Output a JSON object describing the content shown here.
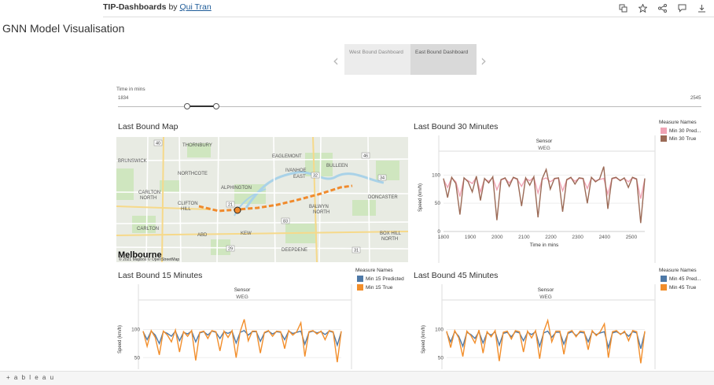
{
  "header": {
    "dashboard_title": "TIP-Dashboards",
    "by_label": "by",
    "author": "Qui Tran",
    "icons": [
      "copy-icon",
      "star-icon",
      "share-icon",
      "comment-icon",
      "download-icon"
    ]
  },
  "page_title": "GNN Model Visualisation",
  "story": {
    "points": [
      "West Bound Dashboard",
      "East Bound Dashboard"
    ],
    "selected_index": 1
  },
  "time_filter": {
    "label": "Time in mins",
    "min_label": "1834",
    "max_label": "2545"
  },
  "map": {
    "title": "Last Bound Map",
    "attribution": "© 2021 Mapbox © OpenStreetMap",
    "city_label": "Melbourne",
    "place_labels": [
      "THORNBURY",
      "BRUNSWICK",
      "NORTHCOTE",
      "EAGLEMONT",
      "IVANHOE EAST",
      "BULLEEN",
      "ALPHINGTON",
      "CARLTON NORTH",
      "CLIFTON HILL",
      "BALWYN NORTH",
      "DONCASTER",
      "CARLTON",
      "KEW",
      "BOX HILL NORTH",
      "DEEPDENE",
      "ABD"
    ],
    "road_labels": [
      "21",
      "40",
      "32",
      "46",
      "34",
      "56",
      "38",
      "50",
      "53",
      "39",
      "34",
      "83",
      "29",
      "31"
    ]
  },
  "colors": {
    "map_route": "#f08a2c",
    "pred_30": "#f0a3b4",
    "true_30": "#9b6a56",
    "pred": "#4e79a7",
    "true": "#f28e2b"
  },
  "charts": [
    {
      "id": "chart-30",
      "title": "Last Bound 30 Minutes",
      "sensor_label": "Sensor",
      "sensor_value": "WEG",
      "ylabel": "Speed (km/h)",
      "xlabel": "Time in mins",
      "legend_title": "Measure Names",
      "legend": [
        {
          "name": "Min 30 Pred...",
          "color": "#f0a3b4"
        },
        {
          "name": "Min 30 True",
          "color": "#9b6a56"
        }
      ],
      "yticks": [
        "100",
        "50",
        "0"
      ],
      "xticks": [
        "1800",
        "1900",
        "2000",
        "2100",
        "2200",
        "2300",
        "2400",
        "2500"
      ]
    },
    {
      "id": "chart-15",
      "title": "Last Bound 15 Minutes",
      "sensor_label": "Sensor",
      "sensor_value": "WEG",
      "ylabel": "Speed (km/h)",
      "legend_title": "Measure Names",
      "legend": [
        {
          "name": "Min 15 Predicted",
          "color": "#4e79a7"
        },
        {
          "name": "Min 15 True",
          "color": "#f28e2b"
        }
      ],
      "yticks": [
        "100",
        "50"
      ],
      "xticks": []
    },
    {
      "id": "chart-45",
      "title": "Last Bound 45 Minutes",
      "sensor_label": "Sensor",
      "sensor_value": "WEG",
      "ylabel": "Speed (km/h)",
      "legend_title": "Measure Names",
      "legend": [
        {
          "name": "Min 45 Pred...",
          "color": "#4e79a7"
        },
        {
          "name": "Min 45 True",
          "color": "#f28e2b"
        }
      ],
      "yticks": [
        "100",
        "50"
      ],
      "xticks": []
    }
  ],
  "chart_data": [
    {
      "type": "line",
      "title": "Last Bound 30 Minutes",
      "xlabel": "Time in mins",
      "ylabel": "Speed (km/h)",
      "xlim": [
        1800,
        2550
      ],
      "ylim": [
        0,
        120
      ],
      "series": [
        {
          "name": "Min 30 Pred...",
          "values": [
            92,
            78,
            95,
            88,
            62,
            94,
            90,
            85,
            96,
            70,
            93,
            89,
            95,
            74,
            91,
            94,
            86,
            95,
            92,
            80,
            94,
            90,
            96,
            68,
            92,
            95,
            88,
            93,
            94,
            72,
            91,
            95,
            89,
            94,
            93,
            76,
            95,
            90,
            92,
            94,
            66,
            93,
            95,
            91,
            94,
            88,
            95,
            92,
            58,
            93
          ]
        },
        {
          "name": "Min 30 True",
          "values": [
            94,
            60,
            96,
            85,
            30,
            95,
            88,
            70,
            98,
            55,
            94,
            86,
            97,
            20,
            92,
            95,
            80,
            96,
            93,
            45,
            95,
            82,
            97,
            25,
            93,
            110,
            75,
            94,
            95,
            35,
            92,
            96,
            84,
            95,
            94,
            50,
            96,
            88,
            93,
            115,
            40,
            94,
            96,
            90,
            95,
            78,
            96,
            93,
            15,
            94
          ]
        }
      ]
    },
    {
      "type": "line",
      "title": "Last Bound 15 Minutes",
      "ylabel": "Speed (km/h)",
      "xlim": [
        1800,
        2550
      ],
      "ylim": [
        35,
        130
      ],
      "series": [
        {
          "name": "Min 15 Predicted",
          "values": [
            96,
            82,
            97,
            90,
            75,
            96,
            93,
            88,
            97,
            80,
            95,
            92,
            97,
            78,
            94,
            96,
            90,
            97,
            95,
            84,
            96,
            93,
            97,
            76,
            95,
            98,
            90,
            96,
            96,
            79,
            94,
            97,
            92,
            96,
            95,
            82,
            97,
            93,
            95,
            97,
            74,
            95,
            97,
            94,
            96,
            91,
            97,
            95,
            72,
            96
          ]
        },
        {
          "name": "Min 15 True",
          "values": [
            97,
            70,
            98,
            86,
            55,
            97,
            90,
            78,
            99,
            60,
            96,
            88,
            98,
            45,
            95,
            97,
            84,
            98,
            96,
            62,
            97,
            86,
            98,
            50,
            96,
            118,
            80,
            97,
            97,
            58,
            95,
            98,
            88,
            97,
            96,
            66,
            98,
            90,
            96,
            112,
            52,
            96,
            98,
            92,
            97,
            82,
            98,
            96,
            42,
            97
          ]
        }
      ]
    },
    {
      "type": "line",
      "title": "Last Bound 45 Minutes",
      "ylabel": "Speed (km/h)",
      "xlim": [
        1800,
        2550
      ],
      "ylim": [
        35,
        130
      ],
      "series": [
        {
          "name": "Min 45 Pred...",
          "values": [
            95,
            78,
            96,
            88,
            70,
            95,
            91,
            84,
            96,
            76,
            94,
            90,
            96,
            72,
            93,
            95,
            87,
            96,
            94,
            80,
            95,
            91,
            96,
            70,
            94,
            97,
            86,
            95,
            95,
            74,
            93,
            96,
            89,
            95,
            94,
            78,
            96,
            91,
            94,
            96,
            68,
            94,
            96,
            92,
            95,
            88,
            96,
            94,
            66,
            95
          ]
        },
        {
          "name": "Min 45 True",
          "values": [
            97,
            68,
            98,
            85,
            52,
            97,
            89,
            76,
            99,
            58,
            96,
            87,
            98,
            44,
            95,
            97,
            83,
            98,
            96,
            60,
            97,
            85,
            98,
            48,
            96,
            116,
            78,
            97,
            97,
            56,
            95,
            98,
            87,
            97,
            96,
            64,
            98,
            89,
            96,
            110,
            50,
            96,
            98,
            91,
            97,
            80,
            98,
            96,
            40,
            97
          ]
        }
      ]
    }
  ],
  "footer": {
    "brand": "+ a b l e a u"
  }
}
